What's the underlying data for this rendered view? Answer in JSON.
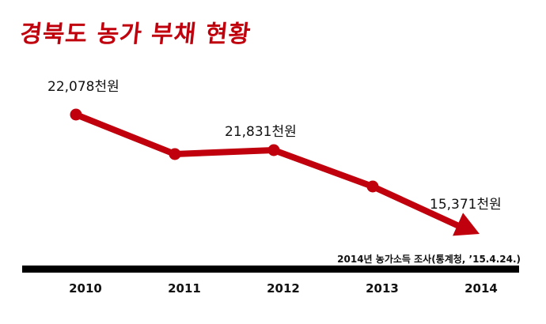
{
  "chart_data": {
    "type": "line",
    "title": "경북도 농가 부채 현황",
    "categories": [
      "2010",
      "2011",
      "2012",
      "2013",
      "2014"
    ],
    "values": [
      22078,
      null,
      21831,
      null,
      15371
    ],
    "data_labels": [
      {
        "category": "2010",
        "text": "22,078천원"
      },
      {
        "category": "2012",
        "text": "21,831천원"
      },
      {
        "category": "2014",
        "text": "15,371천원"
      }
    ],
    "source_note": "2014년 농가소득 조사(통계청, ’15.4.24.)",
    "grid": false,
    "legend": "none"
  },
  "colors": {
    "title": "#c0000c",
    "line": "#c0000c",
    "axis": "#000000"
  }
}
